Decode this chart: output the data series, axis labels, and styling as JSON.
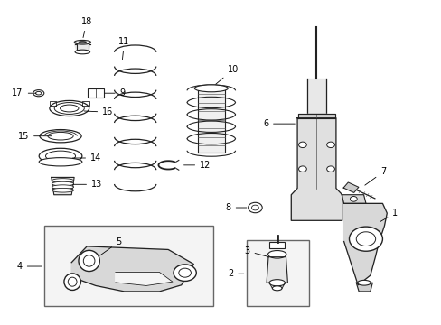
{
  "background_color": "#ffffff",
  "fig_width": 4.89,
  "fig_height": 3.6,
  "dpi": 100,
  "col": "#222222",
  "col_light": "#555555"
}
